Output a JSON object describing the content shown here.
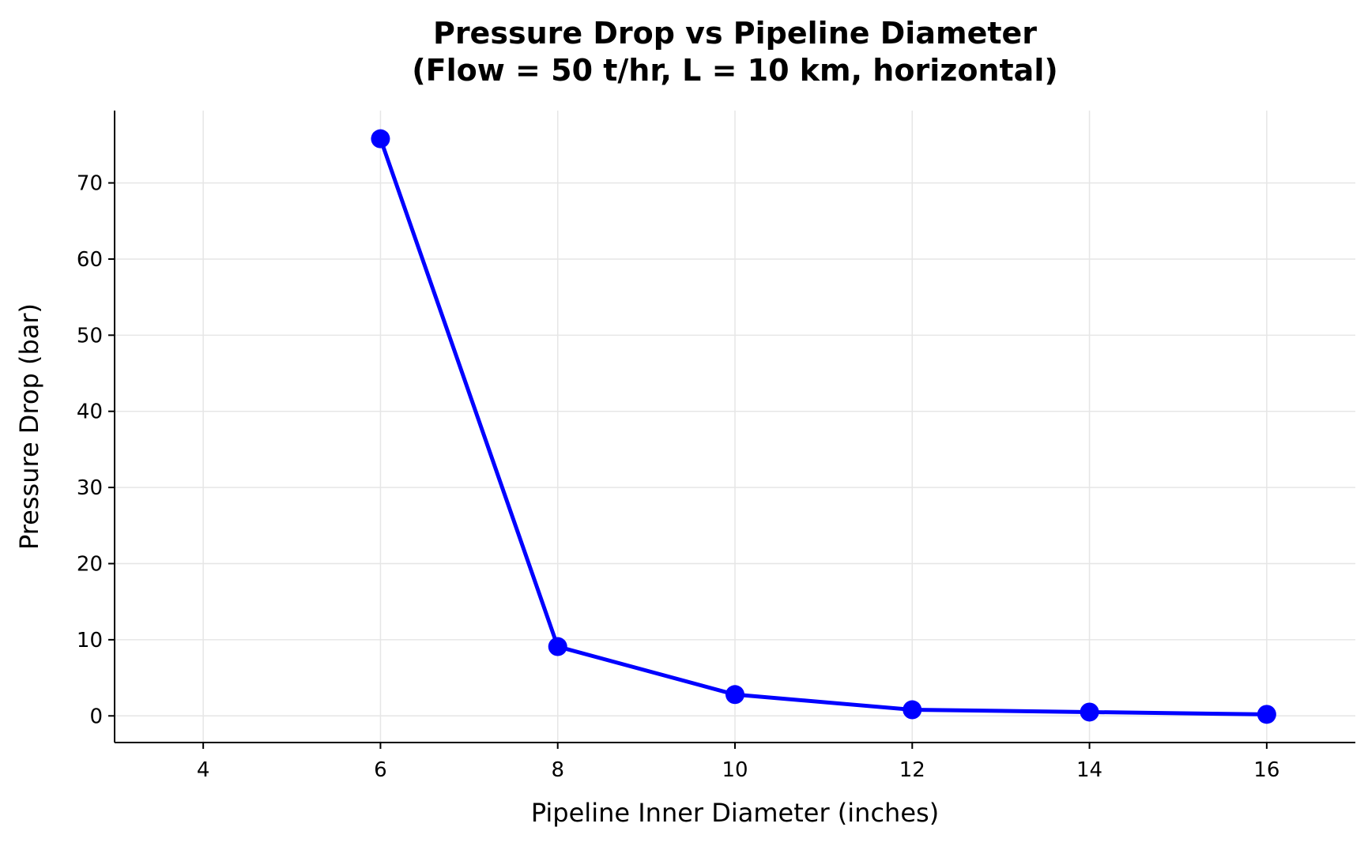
{
  "chart_data": {
    "type": "line",
    "title": "Pressure Drop vs Pipeline Diameter",
    "subtitle": "(Flow = 50 t/hr, L = 10 km, horizontal)",
    "xlabel": "Pipeline Inner Diameter (inches)",
    "ylabel": "Pressure Drop (bar)",
    "x": [
      6,
      8,
      10,
      12,
      14,
      16
    ],
    "series": [
      {
        "values": [
          75.8,
          9.1,
          2.8,
          0.8,
          0.5,
          0.2
        ],
        "color": "#0000ff"
      }
    ],
    "xlim": [
      3,
      17
    ],
    "ylim": [
      -3.5,
      79.5
    ],
    "xticks": [
      "4",
      "6",
      "8",
      "10",
      "12",
      "14",
      "16"
    ],
    "yticks": [
      "0",
      "10",
      "20",
      "30",
      "40",
      "50",
      "60",
      "70"
    ],
    "grid": true,
    "legend": "none"
  }
}
